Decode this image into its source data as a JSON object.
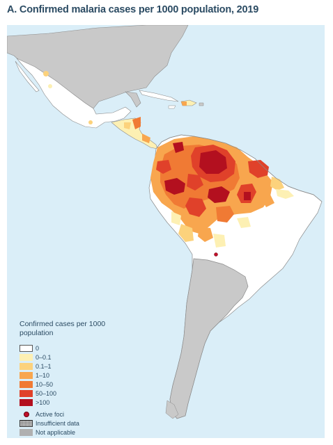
{
  "title": "A. Confirmed malaria cases per 1000 population, 2019",
  "legend": {
    "title": "Confirmed cases per 1000 population",
    "items": [
      {
        "label": "0",
        "color": "#ffffff"
      },
      {
        "label": "0–0.1",
        "color": "#fdf0b3"
      },
      {
        "label": "0.1–1",
        "color": "#fcd27c"
      },
      {
        "label": "1–10",
        "color": "#f8a64e"
      },
      {
        "label": "10–50",
        "color": "#f07a34"
      },
      {
        "label": "50–100",
        "color": "#e0412a"
      },
      {
        "label": ">100",
        "color": "#b3101f"
      }
    ],
    "active_foci": {
      "label": "Active foci",
      "color": "#c0102a"
    },
    "insufficient": {
      "label": "Insufficient data"
    },
    "not_applicable": {
      "label": "Not applicable",
      "color": "#b0b0b0"
    }
  },
  "colors": {
    "ocean": "#daeef8",
    "not_applicable_land": "#c9c9c9",
    "zero": "#ffffff",
    "border": "#8a8a8a"
  }
}
